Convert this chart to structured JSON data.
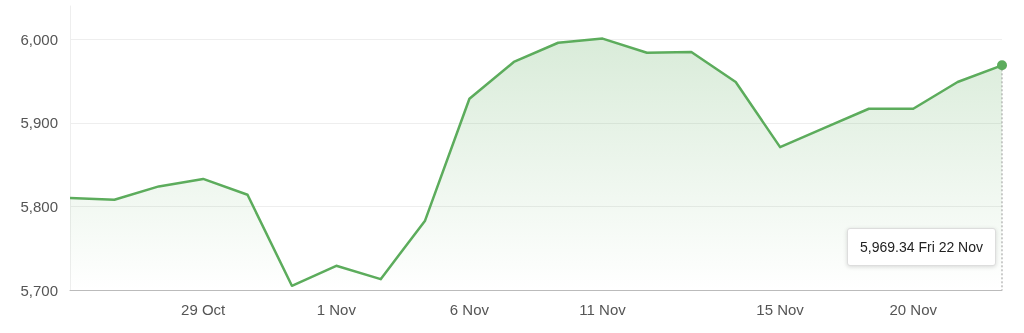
{
  "chart_data": {
    "type": "area",
    "categories": [
      null,
      null,
      null,
      "29 Oct",
      null,
      null,
      "1 Nov",
      null,
      null,
      "6 Nov",
      null,
      null,
      "11 Nov",
      null,
      null,
      null,
      "15 Nov",
      null,
      null,
      "20 Nov",
      null,
      null
    ],
    "series": [
      {
        "color": "#5cac5c",
        "values": [
          5810,
          5808,
          5824,
          5833,
          5814,
          5705,
          5729,
          5713,
          5783,
          5929,
          5973,
          5996,
          6001,
          5984,
          5985,
          5949,
          5871,
          5894,
          5917,
          5917,
          5949,
          5969
        ]
      }
    ],
    "ylim": [
      5700,
      6040
    ],
    "yticks": [
      {
        "value": 5700,
        "label": "5,700"
      },
      {
        "value": 5800,
        "label": "5,800"
      },
      {
        "value": 5900,
        "label": "5,900"
      },
      {
        "value": 6000,
        "label": "6,000"
      }
    ],
    "grid": "y",
    "marker": "none",
    "line_style": "solid",
    "annotations": [
      "5,969.34 Fri 22 Nov"
    ]
  }
}
